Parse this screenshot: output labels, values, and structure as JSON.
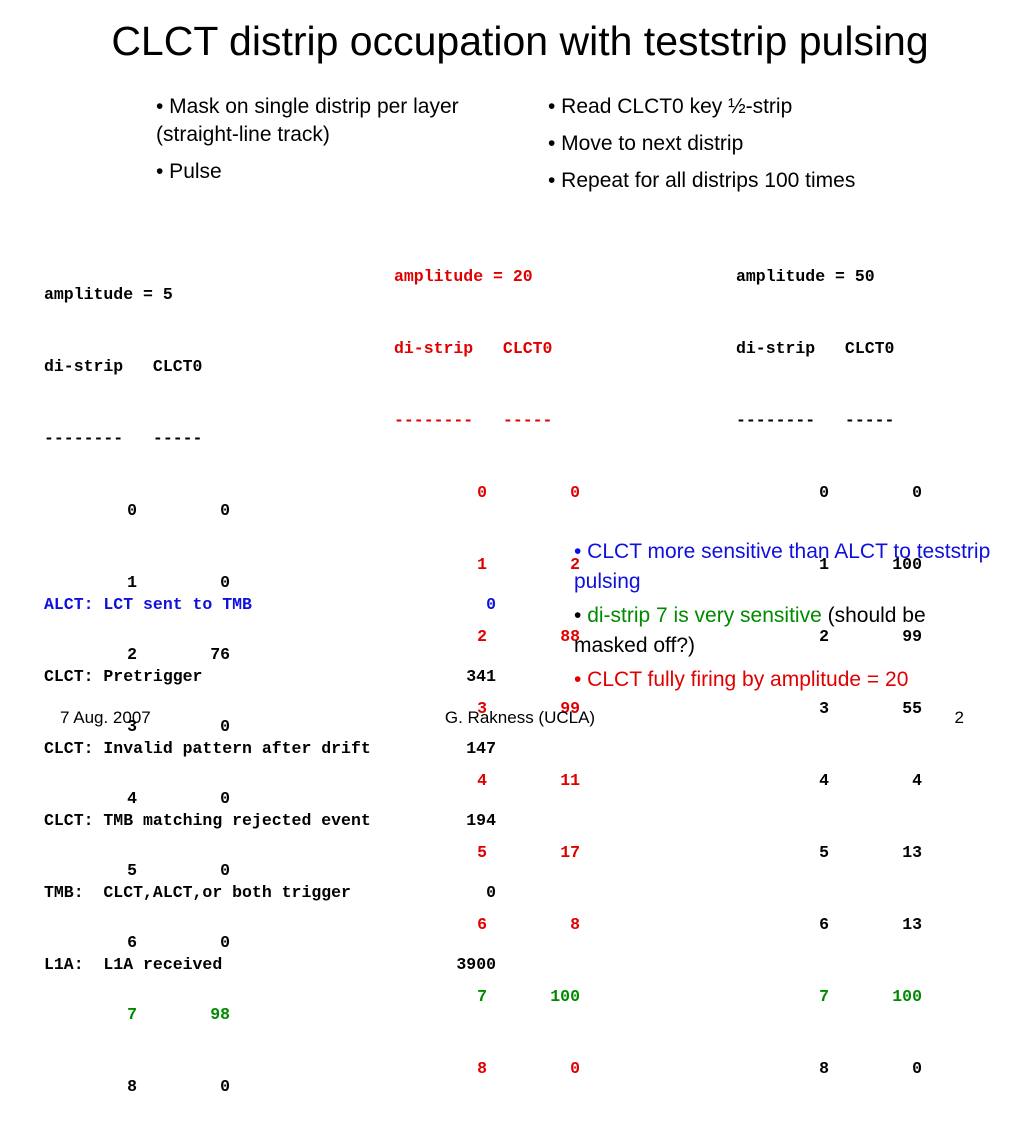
{
  "title": "CLCT distrip occupation with teststrip pulsing",
  "bullets_left": [
    "• Mask on single distrip per layer (straight-line track)",
    "• Pulse"
  ],
  "bullets_right": [
    "• Read CLCT0 key ½-strip",
    "• Move to next distrip",
    "• Repeat for all distrips 100 times"
  ],
  "table_a5": {
    "title": "amplitude = 5",
    "header": "di-strip   CLCT0",
    "divider": "--------   -----",
    "rows": [
      [
        "0",
        "0"
      ],
      [
        "1",
        "0"
      ],
      [
        "2",
        "76"
      ],
      [
        "3",
        "0"
      ],
      [
        "4",
        "0"
      ],
      [
        "5",
        "0"
      ],
      [
        "6",
        "0"
      ],
      [
        "7",
        "98"
      ],
      [
        "8",
        "0"
      ]
    ]
  },
  "table_a20": {
    "title": "amplitude = 20",
    "header": "di-strip   CLCT0",
    "divider": "--------   -----",
    "rows": [
      [
        "0",
        "0"
      ],
      [
        "1",
        "2"
      ],
      [
        "2",
        "88"
      ],
      [
        "3",
        "99"
      ],
      [
        "4",
        "11"
      ],
      [
        "5",
        "17"
      ],
      [
        "6",
        "8"
      ],
      [
        "7",
        "100"
      ],
      [
        "8",
        "0"
      ]
    ]
  },
  "table_a50": {
    "title": "amplitude = 50",
    "header": "di-strip   CLCT0",
    "divider": "--------   -----",
    "rows": [
      [
        "0",
        "0"
      ],
      [
        "1",
        "100"
      ],
      [
        "2",
        "99"
      ],
      [
        "3",
        "55"
      ],
      [
        "4",
        "4"
      ],
      [
        "5",
        "13"
      ],
      [
        "6",
        "13"
      ],
      [
        "7",
        "100"
      ],
      [
        "8",
        "0"
      ]
    ]
  },
  "stats": [
    {
      "label": "ALCT: LCT sent to TMB",
      "value": "0"
    },
    {
      "label": "CLCT: Pretrigger",
      "value": "341"
    },
    {
      "label": "CLCT: Invalid pattern after drift",
      "value": "147"
    },
    {
      "label": "CLCT: TMB matching rejected event",
      "value": "194"
    },
    {
      "label": "TMB:  CLCT,ALCT,or both trigger",
      "value": "0"
    },
    {
      "label": "L1A:  L1A received",
      "value": "3900"
    }
  ],
  "notes": {
    "n1": "• CLCT more sensitive than ALCT to teststrip pulsing",
    "n2_bullet": "• ",
    "n2_colored": "di-strip 7 is very sensitive",
    "n2_rest": " (should be masked off?)",
    "n3": "• CLCT fully firing by amplitude = 20"
  },
  "colors": {
    "red": "#e00000",
    "green": "#008a00",
    "blue": "#1010dd"
  },
  "footer": {
    "date": "7 Aug. 2007",
    "author": "G. Rakness (UCLA)",
    "page": "2"
  }
}
